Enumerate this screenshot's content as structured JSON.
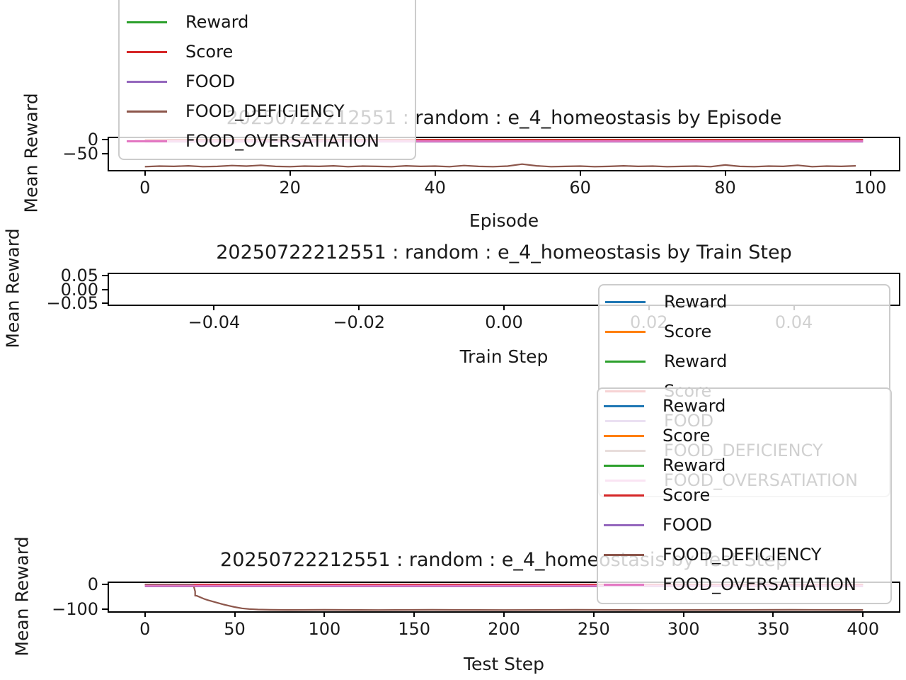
{
  "figure": {
    "background": "#ffffff",
    "text_color": "#1a1a1a",
    "spine_color": "#000000",
    "legend_border_color": "#cccccc"
  },
  "charts": [
    {
      "id": "episode",
      "type": "line",
      "title": "20250722212551 : random : e_4_homeostasis by Episode",
      "xlabel": "Episode",
      "ylabel": "Mean Reward",
      "xlim": [
        -4.95,
        103.95
      ],
      "ylim": [
        -108,
        6
      ],
      "xticks": [
        0,
        20,
        40,
        60,
        80,
        100
      ],
      "xtick_labels": [
        "0",
        "20",
        "40",
        "60",
        "80",
        "100"
      ],
      "yticks": [
        0,
        -50
      ],
      "ytick_labels": [
        "0",
        "−50"
      ],
      "grid": false,
      "series": [
        {
          "name": "Reward",
          "color": "#2ca02c",
          "x": [
            0,
            99
          ],
          "y": [
            0,
            0
          ]
        },
        {
          "name": "Score",
          "color": "#d62728",
          "x": [
            0,
            99
          ],
          "y": [
            0,
            0
          ]
        },
        {
          "name": "FOOD",
          "color": "#9467bd",
          "x": [
            0,
            99
          ],
          "y": [
            -7,
            -7
          ]
        },
        {
          "name": "FOOD_DEFICIENCY",
          "color": "#8c564b",
          "x": [
            0,
            2,
            4,
            6,
            8,
            10,
            12,
            14,
            16,
            18,
            20,
            22,
            24,
            26,
            28,
            30,
            32,
            34,
            36,
            38,
            40,
            42,
            44,
            46,
            48,
            50,
            52,
            54,
            56,
            58,
            60,
            62,
            64,
            66,
            68,
            70,
            72,
            74,
            76,
            78,
            80,
            82,
            84,
            86,
            88,
            90,
            92,
            94,
            96,
            98
          ],
          "y": [
            -96,
            -94,
            -95,
            -93,
            -96,
            -95,
            -92,
            -94,
            -91,
            -95,
            -96,
            -94,
            -95,
            -93,
            -96,
            -94,
            -95,
            -96,
            -93,
            -95,
            -94,
            -96,
            -92,
            -95,
            -96,
            -94,
            -87,
            -93,
            -96,
            -95,
            -94,
            -96,
            -95,
            -93,
            -95,
            -94,
            -96,
            -95,
            -94,
            -96,
            -90,
            -95,
            -96,
            -94,
            -95,
            -91,
            -96,
            -94,
            -95,
            -93
          ]
        },
        {
          "name": "FOOD_OVERSATIATION",
          "color": "#e377c2",
          "width": 2.6,
          "x": [
            0,
            99
          ],
          "y": [
            -5,
            -5
          ]
        }
      ]
    },
    {
      "id": "train",
      "type": "line",
      "title": "20250722212551 : random : e_4_homeostasis by Train Step",
      "xlabel": "Train Step",
      "ylabel": "Mean Reward",
      "xlim": [
        -0.0545,
        0.0545
      ],
      "ylim": [
        -0.0545,
        0.0545
      ],
      "xticks": [
        -0.04,
        -0.02,
        0.0,
        0.02,
        0.04
      ],
      "xtick_labels": [
        "−0.04",
        "−0.02",
        "0.00",
        "0.02",
        "0.04"
      ],
      "yticks": [
        0.05,
        0.0,
        -0.05
      ],
      "ytick_labels": [
        "0.05",
        "0.00",
        "−0.05"
      ],
      "grid": false,
      "series": []
    },
    {
      "id": "test",
      "type": "line",
      "title": "20250722212551 : random : e_4_homeostasis by Test Step",
      "xlabel": "Test Step",
      "ylabel": "Mean Reward",
      "xlim": [
        -20,
        420
      ],
      "ylim": [
        -108,
        6
      ],
      "xticks": [
        0,
        50,
        100,
        150,
        200,
        250,
        300,
        350,
        400
      ],
      "xtick_labels": [
        "0",
        "50",
        "100",
        "150",
        "200",
        "250",
        "300",
        "350",
        "400"
      ],
      "yticks": [
        0,
        -100
      ],
      "ytick_labels": [
        "0",
        "−100"
      ],
      "grid": false,
      "series": [
        {
          "name": "Reward",
          "color": "#1f77b4",
          "x": [
            0,
            400
          ],
          "y": [
            0,
            0
          ]
        },
        {
          "name": "Score",
          "color": "#ff7f0e",
          "x": [
            0,
            400
          ],
          "y": [
            0,
            0
          ]
        },
        {
          "name": "Reward",
          "color": "#2ca02c",
          "x": [
            0,
            400
          ],
          "y": [
            0,
            0
          ]
        },
        {
          "name": "Score",
          "color": "#d62728",
          "x": [
            0,
            400
          ],
          "y": [
            0,
            0
          ]
        },
        {
          "name": "FOOD",
          "color": "#9467bd",
          "x": [
            0,
            400
          ],
          "y": [
            -8,
            -8
          ]
        },
        {
          "name": "FOOD_DEFICIENCY",
          "color": "#8c564b",
          "x": [
            0,
            10,
            20,
            26,
            27,
            28,
            28,
            29,
            31,
            33,
            35,
            38,
            41,
            44,
            47,
            50,
            54,
            58,
            63,
            70,
            80,
            100,
            130,
            160,
            200,
            240,
            280,
            320,
            360,
            400
          ],
          "y": [
            0,
            0,
            0,
            0,
            -2,
            -28,
            -45,
            -46,
            -52,
            -58,
            -63,
            -69,
            -75,
            -81,
            -86,
            -91,
            -96,
            -99,
            -101,
            -102,
            -102.5,
            -102,
            -103,
            -102,
            -103,
            -102,
            -103,
            -102.5,
            -102,
            -102.5
          ]
        },
        {
          "name": "FOOD_OVERSATIATION",
          "color": "#e377c2",
          "width": 2.6,
          "x": [
            0,
            400
          ],
          "y": [
            -5,
            -5
          ]
        }
      ]
    }
  ],
  "legends": [
    {
      "id": "legend-episode",
      "entries": [
        {
          "label": "Reward",
          "color": "#2ca02c"
        },
        {
          "label": "Score",
          "color": "#d62728"
        },
        {
          "label": "FOOD",
          "color": "#9467bd"
        },
        {
          "label": "FOOD_DEFICIENCY",
          "color": "#8c564b"
        },
        {
          "label": "FOOD_OVERSATIATION",
          "color": "#e377c2"
        }
      ]
    },
    {
      "id": "legend-train",
      "entries": [
        {
          "label": "Reward",
          "color": "#1f77b4"
        },
        {
          "label": "Score",
          "color": "#ff7f0e"
        },
        {
          "label": "Reward",
          "color": "#2ca02c"
        },
        {
          "label": "Score",
          "color": "#d62728"
        },
        {
          "label": "FOOD",
          "color": "#9467bd"
        },
        {
          "label": "FOOD_DEFICIENCY",
          "color": "#8c564b"
        },
        {
          "label": "FOOD_OVERSATIATION",
          "color": "#e377c2"
        }
      ]
    },
    {
      "id": "legend-test",
      "entries": [
        {
          "label": "Reward",
          "color": "#1f77b4"
        },
        {
          "label": "Score",
          "color": "#ff7f0e"
        },
        {
          "label": "Reward",
          "color": "#2ca02c"
        },
        {
          "label": "Score",
          "color": "#d62728"
        },
        {
          "label": "FOOD",
          "color": "#9467bd"
        },
        {
          "label": "FOOD_DEFICIENCY",
          "color": "#8c564b"
        },
        {
          "label": "FOOD_OVERSATIATION",
          "color": "#e377c2"
        }
      ]
    }
  ]
}
